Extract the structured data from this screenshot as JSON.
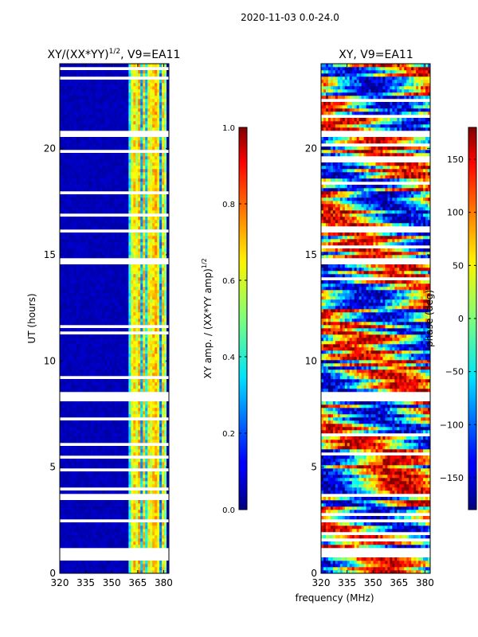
{
  "figure_title": "2020-11-03 0.0-24.0",
  "chart_data": [
    {
      "type": "heatmap",
      "title": "XY/(XX*YY)",
      "title_superscript": "1/2",
      "title_suffix": ", V9=EA11",
      "xlabel": "",
      "ylabel": "UT (hours)",
      "xlim": [
        320,
        383
      ],
      "ylim": [
        0,
        24
      ],
      "xticks": [
        320,
        335,
        350,
        365,
        380
      ],
      "yticks": [
        0,
        5,
        10,
        15,
        20
      ],
      "colormap": "jet",
      "data_gaps_ut": [
        [
          0.7,
          1.2
        ],
        [
          2.35,
          2.5
        ],
        [
          3.55,
          3.8
        ],
        [
          8.1,
          8.55
        ],
        [
          14.5,
          14.9
        ],
        [
          16.1,
          16.25
        ],
        [
          20.5,
          20.8
        ]
      ],
      "bright_band_mhz": [
        360,
        382
      ],
      "colorbar": {
        "label": "XY amp. / (XX*YY amp)",
        "label_superscript": "1/2",
        "range": [
          0.0,
          1.0
        ],
        "ticks": [
          "0.0",
          "0.2",
          "0.4",
          "0.6",
          "0.8",
          "1.0"
        ]
      }
    },
    {
      "type": "heatmap",
      "title": "XY, V9=EA11",
      "xlabel": "frequency (MHz)",
      "ylabel": "",
      "xlim": [
        320,
        383
      ],
      "ylim": [
        0,
        24
      ],
      "xticks": [
        320,
        335,
        350,
        365,
        380
      ],
      "yticks": [
        0,
        5,
        10,
        15,
        20
      ],
      "colormap": "jet",
      "data_gaps_ut": [
        [
          0.7,
          1.2
        ],
        [
          2.35,
          2.5
        ],
        [
          3.55,
          3.8
        ],
        [
          8.1,
          8.55
        ],
        [
          14.5,
          14.9
        ],
        [
          16.1,
          16.25
        ],
        [
          20.5,
          20.8
        ]
      ],
      "colorbar": {
        "label": "phase (deg)",
        "range": [
          -180,
          180
        ],
        "ticks": [
          "−150",
          "−100",
          "−50",
          "0",
          "50",
          "100",
          "150"
        ]
      }
    }
  ]
}
